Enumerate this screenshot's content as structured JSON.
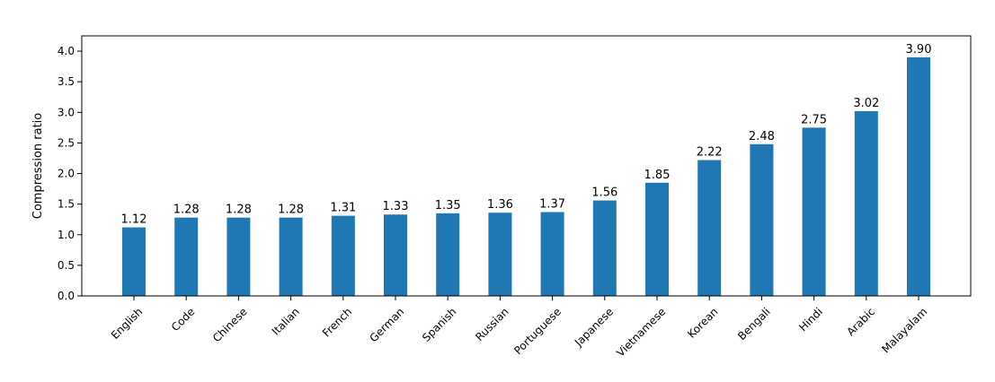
{
  "chart_data": {
    "type": "bar",
    "title": "",
    "xlabel": "",
    "ylabel": "Compression ratio",
    "ylim": [
      0,
      4.25
    ],
    "yticks": [
      "0.0",
      "0.5",
      "1.0",
      "1.5",
      "2.0",
      "2.5",
      "3.0",
      "3.5",
      "4.0"
    ],
    "grid": false,
    "legend": "none",
    "bar_color": "#1f77b4",
    "categories": [
      "English",
      "Code",
      "Chinese",
      "Italian",
      "French",
      "German",
      "Spanish",
      "Russian",
      "Portuguese",
      "Japanese",
      "Vietnamese",
      "Korean",
      "Bengali",
      "Hindi",
      "Arabic",
      "Malayalam"
    ],
    "values": [
      1.12,
      1.28,
      1.28,
      1.28,
      1.31,
      1.33,
      1.35,
      1.36,
      1.37,
      1.56,
      1.85,
      2.22,
      2.48,
      2.75,
      3.02,
      3.9
    ],
    "value_labels": [
      "1.12",
      "1.28",
      "1.28",
      "1.28",
      "1.31",
      "1.33",
      "1.35",
      "1.36",
      "1.37",
      "1.56",
      "1.85",
      "2.22",
      "2.48",
      "2.75",
      "3.02",
      "3.90"
    ]
  }
}
